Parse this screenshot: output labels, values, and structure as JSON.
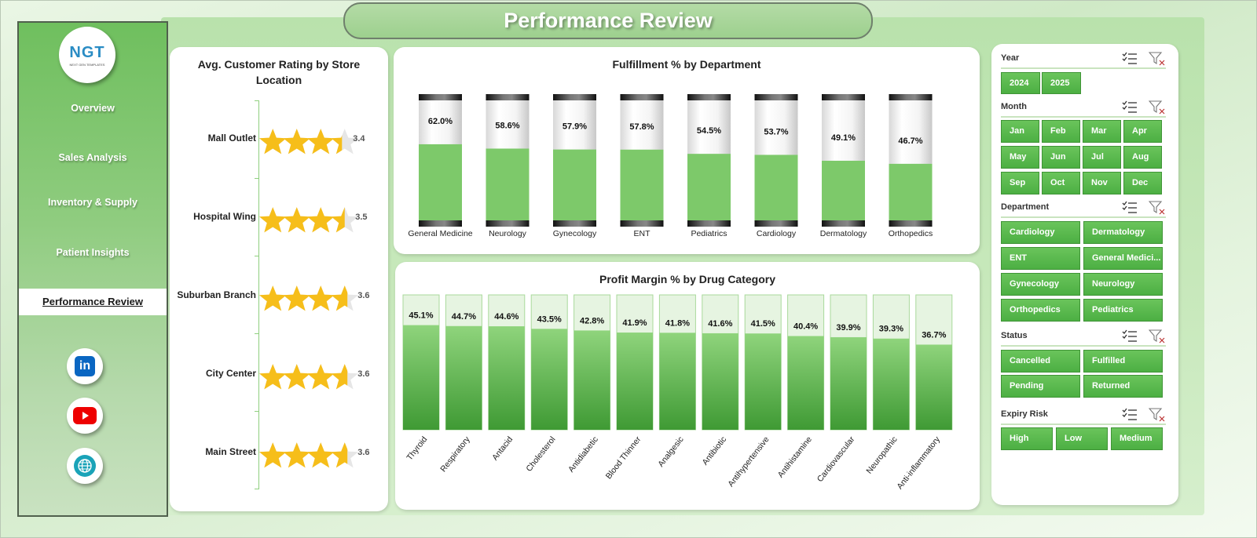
{
  "title": "Performance Review",
  "logo": {
    "text_main": "NGT",
    "text_sub": "NEXT GEN TEMPLATES"
  },
  "nav": [
    {
      "label": "Overview"
    },
    {
      "label": "Sales Analysis"
    },
    {
      "label": "Inventory & Supply"
    },
    {
      "label": "Patient Insights"
    },
    {
      "label": "Performance Review",
      "active": true
    }
  ],
  "social": [
    {
      "icon": "linkedin-icon",
      "label": "in"
    },
    {
      "icon": "youtube-icon",
      "label": ""
    },
    {
      "icon": "globe-icon",
      "label": ""
    }
  ],
  "colors": {
    "accent": "#5cb84e",
    "bar_fill": "#7dc96a",
    "star": "#f6be1a",
    "star_empty": "#e6e6e6"
  },
  "charts": {
    "rating": {
      "title": "Avg. Customer Rating by Store Location"
    },
    "fulfillment": {
      "title": "Fulfillment % by Department"
    },
    "profit": {
      "title": "Profit Margin % by Drug Category"
    }
  },
  "chart_data": [
    {
      "type": "bar",
      "orientation": "horizontal",
      "marker": "stars",
      "title": "Avg. Customer Rating by Store Location",
      "categories": [
        "Mall Outlet",
        "Hospital Wing",
        "Suburban Branch",
        "City Center",
        "Main Street"
      ],
      "values": [
        3.4,
        3.5,
        3.6,
        3.6,
        3.6
      ],
      "ylim": [
        0,
        5
      ]
    },
    {
      "type": "bar",
      "title": "Fulfillment % by Department",
      "categories": [
        "General Medicine",
        "Neurology",
        "Gynecology",
        "ENT",
        "Pediatrics",
        "Cardiology",
        "Dermatology",
        "Orthopedics"
      ],
      "values": [
        62.0,
        58.6,
        57.9,
        57.8,
        54.5,
        53.7,
        49.1,
        46.7
      ],
      "labels": [
        "62.0%",
        "58.6%",
        "57.9%",
        "57.8%",
        "54.5%",
        "53.7%",
        "49.1%",
        "46.7%"
      ],
      "ylim": [
        0,
        100
      ]
    },
    {
      "type": "bar",
      "title": "Profit Margin % by Drug Category",
      "categories": [
        "Thyroid",
        "Respiratory",
        "Antacid",
        "Cholesterol",
        "Antidiabetic",
        "Blood Thinner",
        "Analgesic",
        "Antibiotic",
        "Antihypertensive",
        "Antihistamine",
        "Cardiovascular",
        "Neuropathic",
        "Anti-inflammatory"
      ],
      "values": [
        45.1,
        44.7,
        44.6,
        43.5,
        42.8,
        41.9,
        41.8,
        41.6,
        41.5,
        40.4,
        39.9,
        39.3,
        36.7
      ],
      "labels": [
        "45.1%",
        "44.7%",
        "44.6%",
        "43.5%",
        "42.8%",
        "41.9%",
        "41.8%",
        "41.6%",
        "41.5%",
        "40.4%",
        "39.9%",
        "39.3%",
        "36.7%"
      ],
      "ylim": [
        0,
        100
      ]
    }
  ],
  "slicers": [
    {
      "title": "Year",
      "items": [
        "2024",
        "2025"
      ]
    },
    {
      "title": "Month",
      "items": [
        "Jan",
        "Feb",
        "Mar",
        "Apr",
        "May",
        "Jun",
        "Jul",
        "Aug",
        "Sep",
        "Oct",
        "Nov",
        "Dec"
      ]
    },
    {
      "title": "Department",
      "items": [
        "Cardiology",
        "Dermatology",
        "ENT",
        "General Medici...",
        "Gynecology",
        "Neurology",
        "Orthopedics",
        "Pediatrics"
      ]
    },
    {
      "title": "Status",
      "items": [
        "Cancelled",
        "Fulfilled",
        "Pending",
        "Returned"
      ]
    },
    {
      "title": "Expiry Risk",
      "items": [
        "High",
        "Low",
        "Medium"
      ]
    }
  ]
}
